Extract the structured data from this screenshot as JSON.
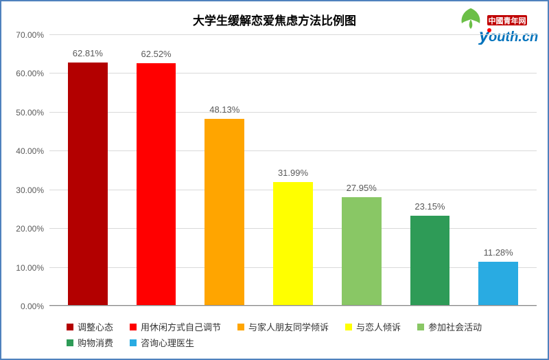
{
  "chart": {
    "type": "bar",
    "title": "大学生缓解恋爱焦虑方法比例图",
    "title_fontsize": 17,
    "title_color": "#000000",
    "background_color": "#ffffff",
    "border_color": "#4f81bd",
    "grid_color": "#d9d9d9",
    "axis_color": "#888888",
    "tick_font_color": "#595959",
    "tick_fontsize": 12,
    "datalabel_fontsize": 13,
    "datalabel_color": "#595959",
    "ylim": [
      0,
      70
    ],
    "ytick_step": 10,
    "ytick_format_suffix": ".00%",
    "bar_width_ratio": 0.58,
    "series": [
      {
        "label": "调整心态",
        "value": 62.81,
        "value_text": "62.81%",
        "color": "#b30000"
      },
      {
        "label": "用休闲方式自己调节",
        "value": 62.52,
        "value_text": "62.52%",
        "color": "#ff0000"
      },
      {
        "label": "与家人朋友同学倾诉",
        "value": 48.13,
        "value_text": "48.13%",
        "color": "#ffa500"
      },
      {
        "label": "与恋人倾诉",
        "value": 31.99,
        "value_text": "31.99%",
        "color": "#ffff00"
      },
      {
        "label": "参加社会活动",
        "value": 27.95,
        "value_text": "27.95%",
        "color": "#89c765"
      },
      {
        "label": "购物消费",
        "value": 23.15,
        "value_text": "23.15%",
        "color": "#2e9b57"
      },
      {
        "label": "咨询心理医生",
        "value": 11.28,
        "value_text": "11.28%",
        "color": "#29abe2"
      }
    ],
    "legend": {
      "position": "bottom",
      "rows": 3,
      "fontsize": 13,
      "text_color": "#333333"
    }
  },
  "logo": {
    "text_main": "outh.cn",
    "text_cn": "中國青年网",
    "main_color": "#0072bc",
    "y_dot_color": "#ff0000",
    "cn_box_color": "#c00000",
    "leaf_color": "#6bbf47"
  }
}
